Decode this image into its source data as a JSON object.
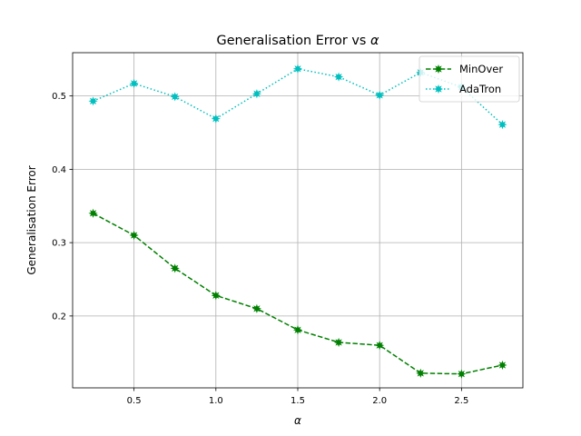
{
  "chart_data": {
    "type": "line",
    "title_prefix": "Generalisation Error vs ",
    "title_symbol": "α",
    "xlabel": "α",
    "ylabel": "Generalisation Error",
    "xlim": [
      0.125,
      2.875
    ],
    "ylim": [
      0.102,
      0.559
    ],
    "xticks": [
      0.5,
      1.0,
      1.5,
      2.0,
      2.5
    ],
    "xtick_labels": [
      "0.5",
      "1.0",
      "1.5",
      "2.0",
      "2.5"
    ],
    "yticks": [
      0.2,
      0.3,
      0.4,
      0.5
    ],
    "ytick_labels": [
      "0.2",
      "0.3",
      "0.4",
      "0.5"
    ],
    "grid": true,
    "legend_position": "top-right",
    "x": [
      0.25,
      0.5,
      0.75,
      1.0,
      1.25,
      1.5,
      1.75,
      2.0,
      2.25,
      2.5,
      2.75
    ],
    "series": [
      {
        "name": "MinOver",
        "color": "#008000",
        "line_style": "dashed",
        "marker": "star",
        "values": [
          0.34,
          0.31,
          0.265,
          0.228,
          0.21,
          0.181,
          0.164,
          0.16,
          0.122,
          0.121,
          0.133
        ]
      },
      {
        "name": "AdaTron",
        "color": "#00bfbf",
        "line_style": "dotted",
        "marker": "star",
        "values": [
          0.493,
          0.517,
          0.499,
          0.469,
          0.503,
          0.537,
          0.526,
          0.501,
          0.532,
          0.512,
          0.461
        ]
      }
    ]
  }
}
